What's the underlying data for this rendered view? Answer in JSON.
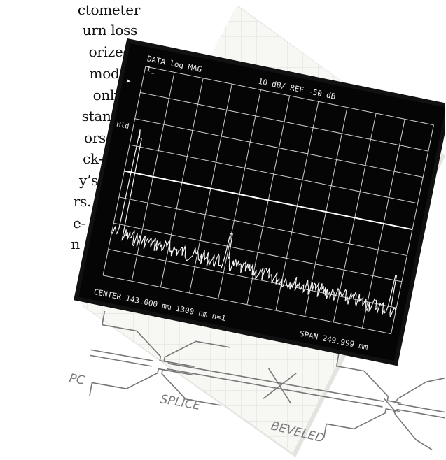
{
  "body_text": {
    "lines": [
      "ctometer",
      "urn loss",
      "orized",
      "mode",
      "only",
      "stan-",
      "ors,",
      "ck-",
      "y’s",
      "rs.",
      "e-",
      "n"
    ]
  },
  "screen": {
    "header_left": "DATA   log  MAG",
    "header_right": "10  dB/   REF  -50  dB",
    "marker_box": "1̲",
    "marker_flag": "▶",
    "left_label": "Hld",
    "footer_left": "CENTER  143.000  mm  1300  nm    n=1",
    "footer_right": "SPAN  249.999  mm",
    "colors": {
      "background": "#050505",
      "grid": "#cfcfcf",
      "trace": "#f4f4f4"
    }
  },
  "drawing": {
    "labels": [
      "PC",
      "SPLICE",
      "BEVELED"
    ],
    "colors": {
      "paper": "#f7f7f4",
      "gridline": "#dcdcd8",
      "ink": "#777777"
    }
  }
}
